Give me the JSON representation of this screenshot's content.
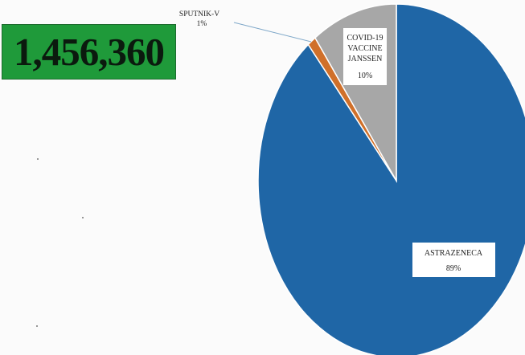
{
  "headline_total": "1,456,360",
  "chart_data": {
    "type": "pie",
    "slices": [
      {
        "name": "ASTRAZENECA",
        "value": 89,
        "label_pct": "89%",
        "color": "#1f66a6"
      },
      {
        "name": "SPUTNIK-V",
        "value": 1,
        "label_pct": "1%",
        "color": "#d0702a"
      },
      {
        "name": "COVID-19 VACCINE JANSSEN",
        "value": 10,
        "label_pct": "10%",
        "color": "#a7a7a7"
      }
    ],
    "label_lines": {
      "astrazeneca": [
        "ASTRAZENECA",
        "89%"
      ],
      "sputnik": [
        "SPUTNIK-V",
        "1%"
      ],
      "janssen": [
        "COVID-19",
        "VACCINE",
        "JANSSEN",
        "10%"
      ]
    }
  }
}
